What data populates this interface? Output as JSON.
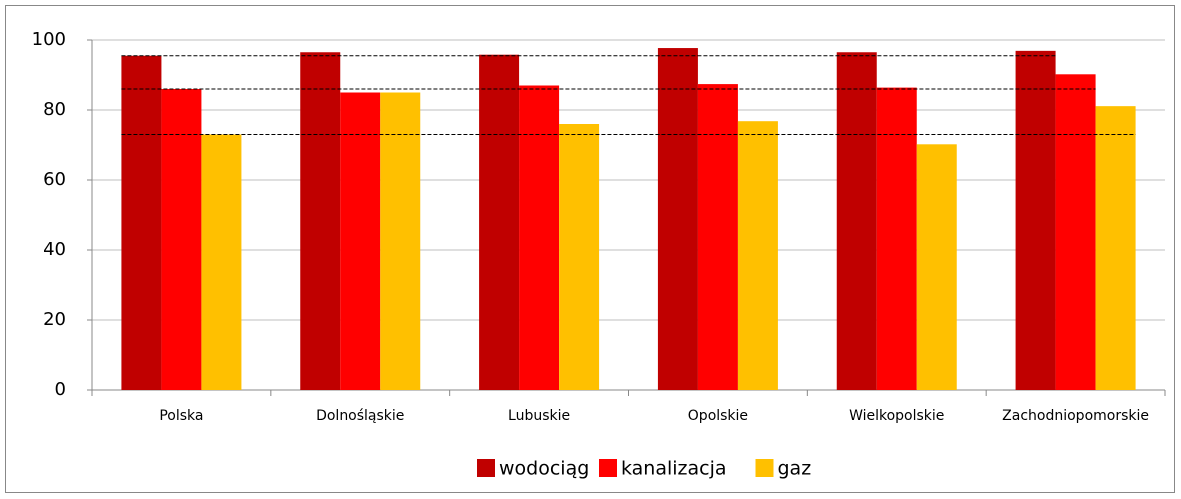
{
  "chart_data": {
    "type": "bar",
    "categories": [
      "Polska",
      "Dolnośląskie",
      "Lubuskie",
      "Opolskie",
      "Wielkopolskie",
      "Zachodniopomorskie"
    ],
    "series": [
      {
        "name": "wodociąg",
        "color": "#c00000",
        "values": [
          95.5,
          96.5,
          95.8,
          97.7,
          96.5,
          96.9
        ]
      },
      {
        "name": "kanalizacja",
        "color": "#ff0000",
        "values": [
          86,
          85,
          87,
          87.4,
          86.4,
          90.2
        ]
      },
      {
        "name": "gaz",
        "color": "#ffc000",
        "values": [
          73,
          85,
          76,
          76.8,
          70.2,
          81.1
        ]
      }
    ],
    "ylim": [
      0,
      100
    ],
    "yticks": [
      0,
      20,
      40,
      60,
      80,
      100
    ],
    "grid": true,
    "legend": "bottom"
  }
}
